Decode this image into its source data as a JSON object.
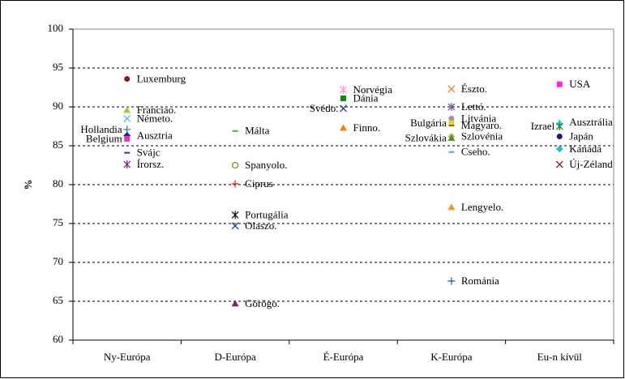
{
  "chart_data": {
    "type": "scatter",
    "ylabel": "%",
    "categories": [
      "Ny-Európa",
      "D-Európa",
      "É-Európa",
      "K-Európa",
      "Eu-n kívül"
    ],
    "ylim": [
      60,
      100
    ],
    "yticks": [
      60,
      65,
      70,
      75,
      80,
      85,
      90,
      95,
      100
    ],
    "grid": true,
    "points": [
      {
        "label": "Luxemburg",
        "category": "Ny-Európa",
        "value": 93.6,
        "marker": "circle",
        "color": "#8b1a1a"
      },
      {
        "label": "Franciao.",
        "category": "Ny-Európa",
        "value": 89.6,
        "marker": "triangle",
        "color": "#a8c83c"
      },
      {
        "label": "Németo.",
        "category": "Ny-Európa",
        "value": 88.5,
        "marker": "x",
        "color": "#33ccee"
      },
      {
        "label": "Hollandia",
        "category": "Ny-Európa",
        "value": 87.1,
        "marker": "plus",
        "color": "#2a8a8a",
        "label_position": "left"
      },
      {
        "label": "Ausztria",
        "category": "Ny-Európa",
        "value": 86.3,
        "marker": "diamond",
        "color": "#1a2a8a"
      },
      {
        "label": "Belgium",
        "category": "Ny-Európa",
        "value": 85.9,
        "marker": "square",
        "color": "#ee33cc",
        "label_position": "left"
      },
      {
        "label": "Svájc",
        "category": "Ny-Európa",
        "value": 84.1,
        "marker": "dash",
        "color": "#2233cc"
      },
      {
        "label": "Írorsz.",
        "category": "Ny-Európa",
        "value": 82.6,
        "marker": "star",
        "color": "#7a2a8a"
      },
      {
        "label": "Málta",
        "category": "D-Európa",
        "value": 86.9,
        "marker": "dash",
        "color": "#22cc22"
      },
      {
        "label": "Spanyolo.",
        "category": "D-Európa",
        "value": 82.5,
        "marker": "open-circle",
        "color": "#8a8a2a"
      },
      {
        "label": "Ciprus",
        "category": "D-Európa",
        "value": 80.1,
        "marker": "plus",
        "color": "#ee2222"
      },
      {
        "label": "Portugália",
        "category": "D-Európa",
        "value": 76.1,
        "marker": "star",
        "color": "#111111"
      },
      {
        "label": "Olaszo.",
        "category": "D-Európa",
        "value": 74.7,
        "marker": "x",
        "color": "#2244aa"
      },
      {
        "label": "Görögo.",
        "category": "D-Európa",
        "value": 64.7,
        "marker": "triangle",
        "color": "#7a2a5a"
      },
      {
        "label": "Norvégia",
        "category": "É-Európa",
        "value": 92.2,
        "marker": "star",
        "color": "#ff99cc"
      },
      {
        "label": "Dánia",
        "category": "É-Európa",
        "value": 91.1,
        "marker": "square",
        "color": "#118a11"
      },
      {
        "label": "Svédo.",
        "category": "É-Európa",
        "value": 89.8,
        "marker": "x",
        "color": "#2233aa",
        "label_position": "left"
      },
      {
        "label": "Finno.",
        "category": "É-Európa",
        "value": 87.3,
        "marker": "triangle",
        "color": "#ff7711"
      },
      {
        "label": "Észto.",
        "category": "K-Európa",
        "value": 92.3,
        "marker": "x",
        "color": "#ff7722"
      },
      {
        "label": "Lettó.",
        "category": "K-Európa",
        "value": 90.0,
        "marker": "star",
        "color": "#7755aa"
      },
      {
        "label": "Litvánia",
        "category": "K-Európa",
        "value": 88.5,
        "marker": "circle",
        "color": "#999999"
      },
      {
        "label": "Bulgária",
        "category": "K-Európa",
        "value": 87.9,
        "marker": "square",
        "color": "#eecc22",
        "label_position": "left"
      },
      {
        "label": "Magyaro.",
        "category": "K-Európa",
        "value": 87.6,
        "marker": "dash",
        "color": "#6a7a22"
      },
      {
        "label": "Szlovénia",
        "category": "K-Európa",
        "value": 86.2,
        "marker": "diamond",
        "color": "#a8c83c"
      },
      {
        "label": "Szlovákia",
        "category": "K-Európa",
        "value": 86.0,
        "marker": "triangle",
        "color": "#5a8a2a",
        "label_position": "left"
      },
      {
        "label": "Cseho.",
        "category": "K-Európa",
        "value": 84.2,
        "marker": "dash",
        "color": "#33bbcc"
      },
      {
        "label": "Lengyelo.",
        "category": "K-Európa",
        "value": 77.1,
        "marker": "triangle",
        "color": "#ee9922"
      },
      {
        "label": "Románia",
        "category": "K-Európa",
        "value": 67.6,
        "marker": "plus",
        "color": "#2a6a8a"
      },
      {
        "label": "USA",
        "category": "Eu-n kívül",
        "value": 92.9,
        "marker": "square",
        "color": "#ff22dd"
      },
      {
        "label": "Ausztrália",
        "category": "Eu-n kívül",
        "value": 88.0,
        "marker": "triangle",
        "color": "#33ddee"
      },
      {
        "label": "Izrael",
        "category": "Eu-n kívül",
        "value": 87.5,
        "marker": "star",
        "color": "#228822",
        "label_position": "left"
      },
      {
        "label": "Japán",
        "category": "Eu-n kívül",
        "value": 86.2,
        "marker": "circle",
        "color": "#1a1a6a"
      },
      {
        "label": "Kanada",
        "category": "Eu-n kívül",
        "value": 84.6,
        "marker": "diamond",
        "color": "#33bbbb"
      },
      {
        "label": "Új-Zéland",
        "category": "Eu-n kívül",
        "value": 82.6,
        "marker": "x",
        "color": "#8b1a1a"
      }
    ]
  }
}
